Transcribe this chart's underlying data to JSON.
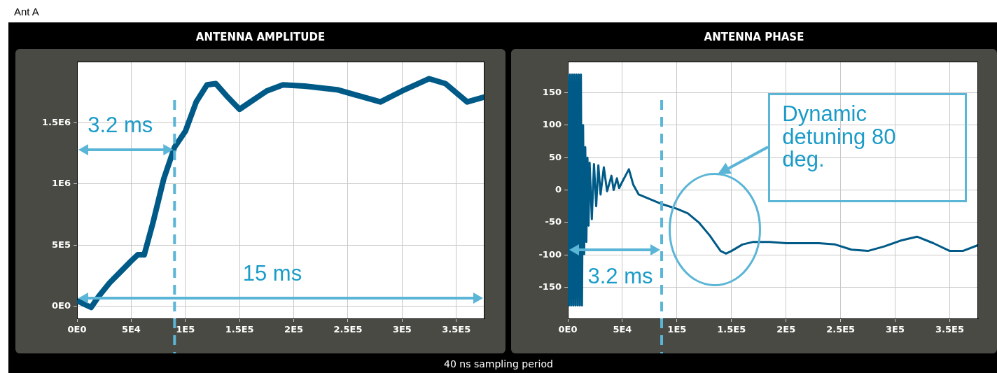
{
  "chart_data": [
    {
      "type": "line",
      "title": "ANTENNA AMPLITUDE",
      "color": "#005a87",
      "grid": true,
      "x": [
        0,
        6000,
        13000,
        20000,
        30000,
        40000,
        50000,
        56000,
        62000,
        70000,
        80000,
        90000,
        100000,
        110000,
        120000,
        128000,
        138000,
        150000,
        160000,
        175000,
        190000,
        210000,
        240000,
        260000,
        280000,
        300000,
        325000,
        340000,
        360000,
        376000
      ],
      "values": [
        45000,
        20000,
        -10000,
        80000,
        190000,
        280000,
        370000,
        420000,
        420000,
        680000,
        1040000,
        1300000,
        1430000,
        1670000,
        1810000,
        1820000,
        1720000,
        1610000,
        1670000,
        1760000,
        1810000,
        1800000,
        1770000,
        1720000,
        1670000,
        1760000,
        1860000,
        1820000,
        1670000,
        1710000
      ],
      "xlim": [
        0,
        376000
      ],
      "ylim": [
        -100000,
        2000000
      ],
      "xticks": [
        {
          "value": 0,
          "label": "0E0"
        },
        {
          "value": 50000,
          "label": "5E4"
        },
        {
          "value": 100000,
          "label": "1E5"
        },
        {
          "value": 150000,
          "label": "1.5E5"
        },
        {
          "value": 200000,
          "label": "2E5"
        },
        {
          "value": 250000,
          "label": "2.5E5"
        },
        {
          "value": 300000,
          "label": "3E5"
        },
        {
          "value": 350000,
          "label": "3.5E5"
        }
      ],
      "yticks": [
        {
          "value": 0,
          "label": "0E0"
        },
        {
          "value": 500000,
          "label": "5E5"
        },
        {
          "value": 1000000,
          "label": "1E6"
        },
        {
          "value": 1500000,
          "label": "1.5E6"
        }
      ],
      "ref_lines": [
        {
          "axis": "x",
          "value": 90000,
          "color": "#5bb5d6",
          "line_style": "dashed"
        }
      ],
      "annotations": [
        "Ant A",
        "3.2 ms",
        "15 ms"
      ]
    },
    {
      "type": "line",
      "title": "ANTENNA PHASE",
      "color": "#005a87",
      "grid": true,
      "x": [
        0,
        1000,
        2000,
        3000,
        4000,
        5000,
        6000,
        7000,
        8000,
        9000,
        10000,
        11000,
        12000,
        13000,
        14000,
        15000,
        16000,
        17000,
        18000,
        19000,
        20000,
        22000,
        24000,
        26000,
        28000,
        30000,
        33000,
        36000,
        40000,
        42000,
        45000,
        47000,
        50000,
        56000,
        60000,
        65000,
        75000,
        85000,
        100000,
        110000,
        120000,
        130000,
        140000,
        145000,
        150000,
        160000,
        170000,
        185000,
        200000,
        230000,
        245000,
        260000,
        275000,
        290000,
        305000,
        320000,
        335000,
        350000,
        362000,
        376000
      ],
      "values": [
        178,
        -178,
        178,
        -178,
        178,
        -178,
        178,
        -178,
        178,
        -178,
        178,
        -178,
        178,
        -178,
        100,
        -99,
        66,
        -80,
        50,
        -55,
        42,
        -45,
        40,
        -25,
        38,
        -7,
        35,
        -2,
        22,
        0,
        18,
        3,
        13,
        32,
        8,
        -7,
        -14,
        -21,
        -29,
        -36,
        -50,
        -70,
        -94,
        -98,
        -94,
        -84,
        -80,
        -80,
        -82,
        -82,
        -84,
        -92,
        -94,
        -87,
        -78,
        -72,
        -82,
        -94,
        -94,
        -85
      ],
      "xlim": [
        0,
        376000
      ],
      "ylim": [
        -198,
        198
      ],
      "xticks": [
        {
          "value": 0,
          "label": "0E0"
        },
        {
          "value": 50000,
          "label": "5E4"
        },
        {
          "value": 100000,
          "label": "1E5"
        },
        {
          "value": 150000,
          "label": "1.5E5"
        },
        {
          "value": 200000,
          "label": "2E5"
        },
        {
          "value": 250000,
          "label": "2.5E5"
        },
        {
          "value": 300000,
          "label": "3E5"
        },
        {
          "value": 350000,
          "label": "3.5E5"
        }
      ],
      "yticks": [
        -150,
        -100,
        -50,
        0,
        50,
        100,
        150
      ],
      "ref_lines": [
        {
          "axis": "x",
          "value": 86000,
          "color": "#5bb5d6",
          "line_style": "dashed"
        }
      ],
      "annotations": [
        "40 ns sampling period",
        "3.2 ms",
        "Dynamic detuning 80 deg."
      ]
    }
  ]
}
